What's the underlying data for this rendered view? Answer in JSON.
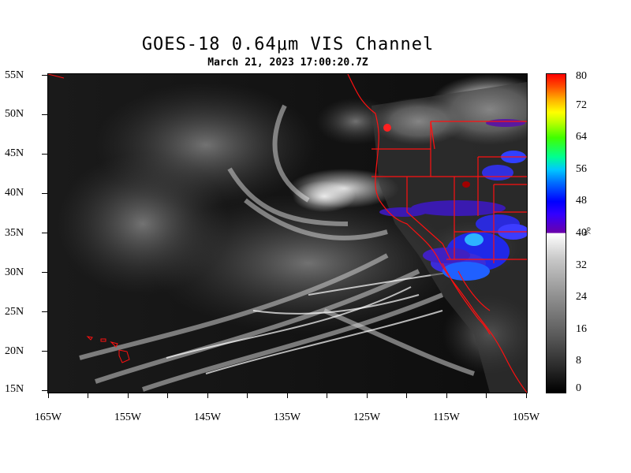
{
  "header": {
    "title": "GOES-18  0.64μm VIS Channel",
    "subtitle": "March 21,  2023 17:00:20.7Z"
  },
  "axes": {
    "lat_labels": [
      "55N",
      "50N",
      "45N",
      "40N",
      "35N",
      "30N",
      "25N",
      "20N",
      "15N"
    ],
    "lon_labels": [
      "165W",
      "155W",
      "145W",
      "135W",
      "125W",
      "115W",
      "105W"
    ],
    "lat_range": [
      15,
      55
    ],
    "lon_range": [
      -165,
      -105
    ]
  },
  "colorbar": {
    "labels": [
      "80",
      "72",
      "64",
      "56",
      "48",
      "40",
      "32",
      "24",
      "16",
      "8",
      "0"
    ],
    "unit": "%",
    "range": [
      0,
      80
    ]
  },
  "colors": {
    "boundaries": "#ff0000",
    "background": "#0b0b0b"
  }
}
